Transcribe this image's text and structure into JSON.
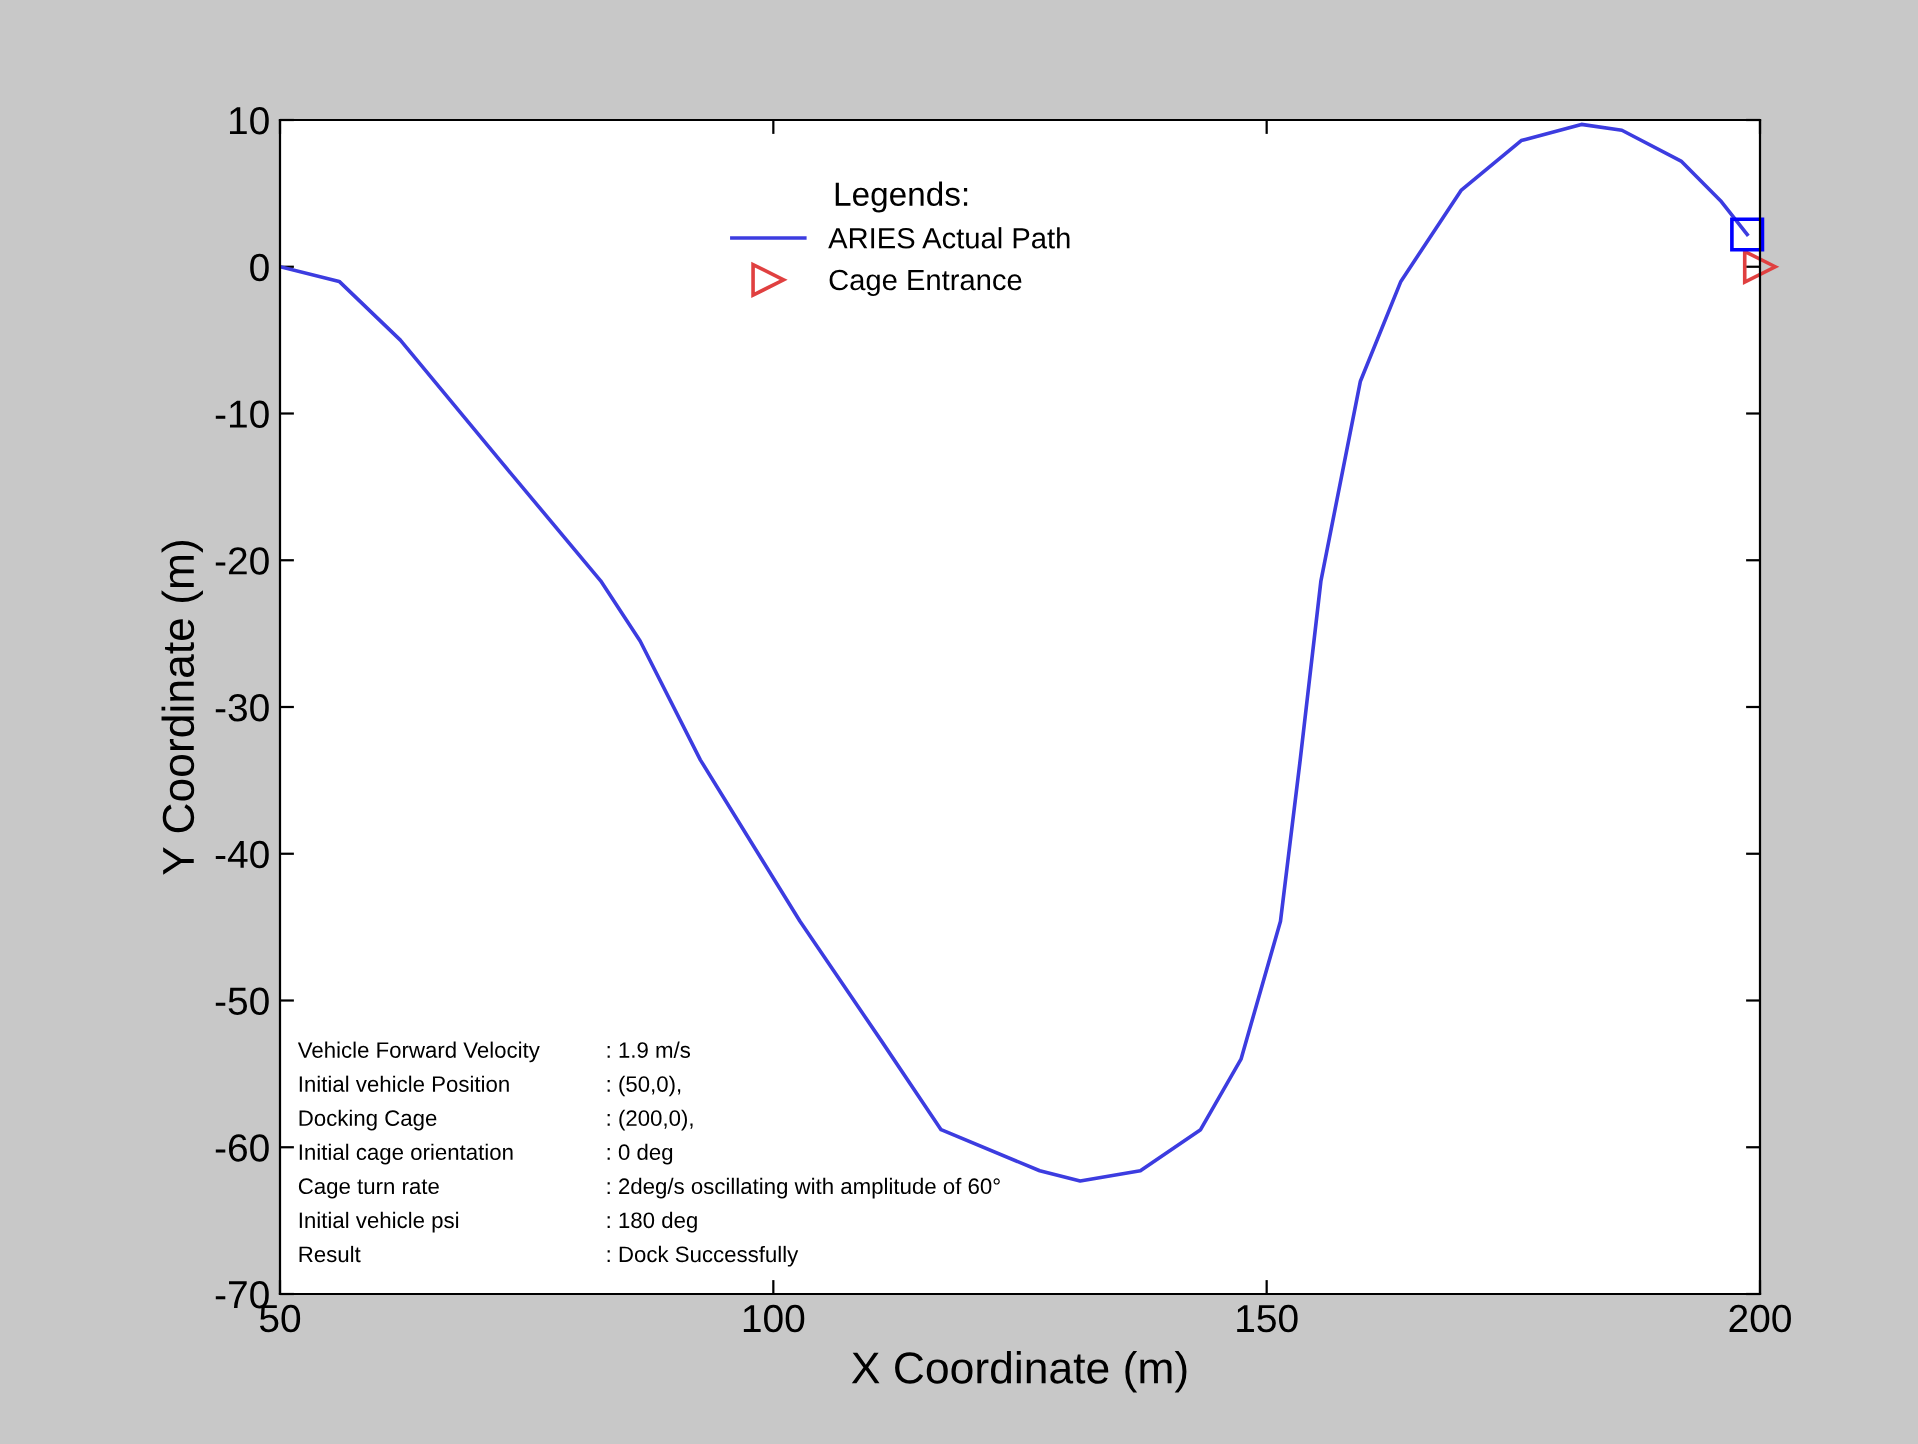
{
  "chart_data": {
    "type": "line",
    "xlabel": "X Coordinate (m)",
    "ylabel": "Y Coordinate (m)",
    "legend_title": "Legends:",
    "legend": "top",
    "series": [
      {
        "name": "ARIES Actual Path",
        "color": "#3c3ce0",
        "marker": "none",
        "x": [
          50,
          56,
          62.2,
          72.3,
          82.5,
          86.5,
          92.6,
          102.7,
          110.9,
          117,
          127,
          131.1,
          137.2,
          143.3,
          147.4,
          151.4,
          153.4,
          155.5,
          159.5,
          163.6,
          169.7,
          175.8,
          181.9,
          186,
          192,
          196,
          198.7
        ],
        "values": [
          0,
          -1,
          -5,
          -13.2,
          -21.4,
          -25.5,
          -33.6,
          -44.6,
          -52.7,
          -58.8,
          -61.6,
          -62.3,
          -61.6,
          -58.8,
          -54,
          -44.6,
          -33.6,
          -21.4,
          -7.8,
          -1,
          5.2,
          8.6,
          9.7,
          9.3,
          7.2,
          4.5,
          2.2
        ]
      },
      {
        "name": "Cage Entrance",
        "color": "#e04040",
        "type": "scatter",
        "marker": "triangle",
        "x": [
          200
        ],
        "values": [
          0
        ]
      },
      {
        "color": "#0000ff",
        "type": "scatter",
        "marker": "square",
        "x": [
          198.7
        ],
        "values": [
          2.2
        ]
      }
    ],
    "xlim": [
      50,
      200
    ],
    "ylim": [
      -70,
      10
    ],
    "xticks": [
      50,
      100,
      150,
      200
    ],
    "yticks": [
      -70,
      -60,
      -50,
      -40,
      -30,
      -20,
      -10,
      0,
      10
    ],
    "grid": false,
    "annotations": [
      "Vehicle Forward Velocity : 1.9 m/s",
      "Initial vehicle Position : (50,0),",
      "Docking Cage : (200,0),",
      "Initial cage orientation : 0 deg",
      "Cage turn rate : 2deg/s oscillating with amplitude of 60°",
      "Initial vehicle psi : 180 deg",
      "Result : Dock Successfully"
    ]
  }
}
